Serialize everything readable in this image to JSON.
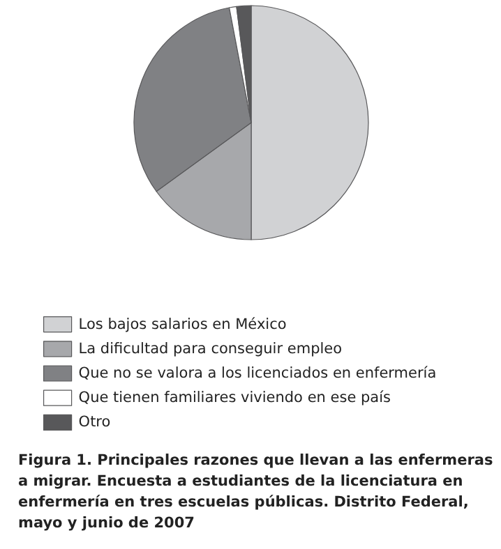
{
  "chart_data": {
    "type": "pie",
    "title": "Figura 1. Principales razones que llevan a las enfermeras a migrar. Encuesta a estudiantes de la licenciatura en enfermería en tres escuelas públicas. Distrito Federal, mayo y junio de 2007",
    "categories": [
      "Los bajos salarios en México",
      "La dificultad para conseguir empleo",
      "Que no se valora a los licenciados en enfermería",
      "Que tienen familiares viviendo en ese país",
      "Otro"
    ],
    "values": [
      50,
      15,
      32,
      1,
      2
    ],
    "colors": [
      "#d1d2d4",
      "#a7a8ab",
      "#808184",
      "#ffffff",
      "#58585a"
    ],
    "legend": "bottom left"
  }
}
